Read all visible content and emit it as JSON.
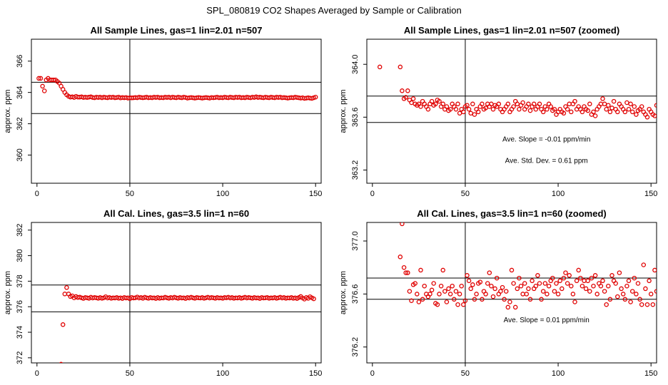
{
  "title": "SPL_080819  CO2 Shapes Averaged by Sample or Calibration",
  "colors": {
    "points": "#e00000",
    "lines": "#000000"
  },
  "chart_data": [
    {
      "type": "scatter",
      "title": "All Sample Lines, gas=1 lin=2.01 n=507",
      "xlabel": "",
      "ylabel": "approx. ppm",
      "xlim": [
        -3,
        153
      ],
      "ylim": [
        358.2,
        367.4
      ],
      "xticks": [
        0,
        50,
        100,
        150
      ],
      "yticks": [
        360,
        362,
        364,
        366
      ],
      "vline_x": 50,
      "hlines_y": [
        364.65,
        362.65
      ],
      "annotations": [],
      "series": [
        {
          "x_start": 1,
          "x_step": 1,
          "y": [
            364.9,
            364.9,
            364.4,
            364.1,
            364.8,
            364.9,
            364.8,
            364.8,
            364.8,
            364.8,
            364.7,
            364.6,
            364.4,
            364.2,
            364.0,
            363.85,
            363.75,
            363.7,
            363.72,
            363.68,
            363.75,
            363.7,
            363.7,
            363.72,
            363.68,
            363.7,
            363.68,
            363.7,
            363.72,
            363.68,
            363.66,
            363.7,
            363.68,
            363.7,
            363.66,
            363.7,
            363.68,
            363.66,
            363.7,
            363.68,
            363.7,
            363.66,
            363.68,
            363.7,
            363.65,
            363.68,
            363.66,
            363.68,
            363.64,
            363.66,
            363.65,
            363.66,
            363.68,
            363.66,
            363.7,
            363.68,
            363.66,
            363.68,
            363.7,
            363.66,
            363.68,
            363.66,
            363.7,
            363.68,
            363.7,
            363.66,
            363.68,
            363.66,
            363.7,
            363.68,
            363.7,
            363.66,
            363.7,
            363.68,
            363.66,
            363.7,
            363.68,
            363.66,
            363.7,
            363.68,
            363.64,
            363.66,
            363.68,
            363.66,
            363.64,
            363.66,
            363.68,
            363.66,
            363.64,
            363.66,
            363.68,
            363.66,
            363.64,
            363.68,
            363.66,
            363.68,
            363.7,
            363.66,
            363.68,
            363.66,
            363.7,
            363.68,
            363.66,
            363.7,
            363.68,
            363.66,
            363.7,
            363.68,
            363.7,
            363.66,
            363.68,
            363.66,
            363.7,
            363.68,
            363.66,
            363.7,
            363.68,
            363.72,
            363.68,
            363.7,
            363.68,
            363.66,
            363.7,
            363.68,
            363.66,
            363.7,
            363.68,
            363.66,
            363.7,
            363.68,
            363.7,
            363.66,
            363.68,
            363.66,
            363.64,
            363.66,
            363.68,
            363.66,
            363.7,
            363.68,
            363.66,
            363.64,
            363.66,
            363.62,
            363.64,
            363.66,
            363.64,
            363.62,
            363.66,
            363.7
          ]
        }
      ]
    },
    {
      "type": "scatter",
      "title": "All Sample Lines, gas=1 lin=2.01 n=507 (zoomed)",
      "xlabel": "",
      "ylabel": "approx. ppm",
      "xlim": [
        -3,
        153
      ],
      "ylim": [
        363.1,
        364.19
      ],
      "xticks": [
        0,
        50,
        100,
        150
      ],
      "yticks": [
        363.2,
        363.6,
        364.0
      ],
      "yticklabels": [
        "363.2",
        "363.6",
        "364.0"
      ],
      "vline_x": 50,
      "hlines_y": [
        363.76,
        363.56
      ],
      "annotations": [
        "Ave. Slope =  -0.01  ppm/min",
        "Ave. Std. Dev. =  0.61  ppm"
      ],
      "series": [
        {
          "x_start": 4,
          "x_step": 1,
          "y": [
            363.98,
            null,
            null,
            null,
            null,
            null,
            null,
            null,
            null,
            null,
            null,
            363.98,
            363.8,
            363.74,
            363.75,
            363.8,
            363.73,
            363.71,
            363.74,
            363.7,
            363.69,
            363.7,
            363.68,
            363.72,
            363.7,
            363.68,
            363.66,
            363.7,
            363.72,
            363.69,
            363.7,
            363.73,
            363.72,
            363.68,
            363.7,
            363.66,
            363.68,
            363.65,
            363.66,
            363.7,
            363.68,
            363.66,
            363.7,
            363.63,
            363.66,
            363.64,
            363.68,
            363.69,
            363.66,
            363.63,
            363.7,
            363.62,
            363.66,
            363.64,
            363.68,
            363.7,
            363.66,
            363.67,
            363.7,
            363.68,
            363.7,
            363.66,
            363.69,
            363.68,
            363.7,
            363.66,
            363.64,
            363.66,
            363.68,
            363.7,
            363.64,
            363.66,
            363.68,
            363.72,
            363.7,
            363.66,
            363.69,
            363.71,
            363.66,
            363.68,
            363.7,
            363.65,
            363.68,
            363.7,
            363.66,
            363.68,
            363.7,
            363.66,
            363.64,
            363.68,
            363.66,
            363.7,
            363.68,
            363.65,
            363.66,
            363.62,
            363.64,
            363.66,
            363.64,
            363.63,
            363.68,
            363.66,
            363.7,
            363.64,
            363.7,
            363.72,
            363.66,
            363.68,
            363.66,
            363.64,
            363.68,
            363.66,
            363.65,
            363.7,
            363.62,
            363.64,
            363.61,
            363.66,
            363.68,
            363.7,
            363.74,
            363.7,
            363.66,
            363.69,
            363.64,
            363.67,
            363.72,
            363.66,
            363.64,
            363.7,
            363.68,
            363.66,
            363.64,
            363.71,
            363.66,
            363.7,
            363.64,
            363.68,
            363.62,
            363.65,
            363.66,
            363.68,
            363.64,
            363.62,
            363.6,
            363.66,
            363.64,
            363.62,
            363.61,
            363.69
          ]
        }
      ]
    },
    {
      "type": "scatter",
      "title": "All Cal. Lines, gas=3.5 lin=1 n=60",
      "xlabel": "",
      "ylabel": "approx. ppm",
      "xlim": [
        -3,
        153
      ],
      "ylim": [
        371.6,
        382.6
      ],
      "xticks": [
        0,
        50,
        100,
        150
      ],
      "yticks": [
        372,
        374,
        376,
        378,
        380,
        382
      ],
      "yticklabels": [
        "372",
        "374",
        "376",
        "378",
        "380",
        "382"
      ],
      "vline_x": 50,
      "hlines_y": [
        377.7,
        375.6
      ],
      "annotations": [],
      "series": [
        {
          "x_start": 13,
          "x_step": 1,
          "y": [
            371.5,
            374.6,
            377.0,
            377.5,
            377.0,
            376.8,
            376.85,
            376.7,
            376.8,
            376.72,
            376.75,
            376.7,
            376.65,
            376.72,
            376.7,
            376.66,
            376.74,
            376.68,
            376.72,
            376.7,
            376.66,
            376.72,
            376.66,
            376.7,
            376.78,
            376.68,
            376.72,
            376.66,
            376.7,
            376.68,
            376.72,
            376.66,
            376.7,
            376.64,
            376.72,
            376.68,
            376.7,
            376.62,
            376.72,
            376.68,
            376.7,
            376.76,
            376.68,
            376.72,
            376.66,
            376.74,
            376.7,
            376.66,
            376.72,
            376.68,
            376.7,
            376.64,
            376.72,
            376.66,
            376.7,
            376.68,
            376.74,
            376.7,
            376.66,
            376.72,
            376.68,
            376.74,
            376.7,
            376.66,
            376.72,
            376.68,
            376.7,
            376.64,
            376.72,
            376.68,
            376.74,
            376.7,
            376.66,
            376.72,
            376.7,
            376.68,
            376.72,
            376.66,
            376.7,
            376.74,
            376.68,
            376.72,
            376.7,
            376.66,
            376.72,
            376.68,
            376.7,
            376.66,
            376.72,
            376.7,
            376.74,
            376.68,
            376.72,
            376.66,
            376.7,
            376.68,
            376.72,
            376.66,
            376.7,
            376.74,
            376.68,
            376.72,
            376.7,
            376.66,
            376.72,
            376.68,
            376.7,
            376.64,
            376.72,
            376.68,
            376.7,
            376.72,
            376.66,
            376.7,
            376.68,
            376.72,
            376.66,
            376.7,
            376.74,
            376.68,
            376.72,
            376.66,
            376.7,
            376.68,
            376.72,
            376.66,
            376.7,
            376.64,
            376.72,
            376.8,
            376.68,
            376.6,
            376.72,
            376.66,
            376.78,
            376.7,
            376.62
          ]
        }
      ]
    },
    {
      "type": "scatter",
      "title": "All Cal. Lines, gas=3.5 lin=1 n=60 (zoomed)",
      "xlabel": "",
      "ylabel": "approx. ppm",
      "xlim": [
        -3,
        153
      ],
      "ylim": [
        376.08,
        377.14
      ],
      "xticks": [
        0,
        50,
        100,
        150
      ],
      "yticks": [
        376.2,
        376.6,
        377.0
      ],
      "yticklabels": [
        "376.2",
        "376.6",
        "377.0"
      ],
      "vline_x": 50,
      "hlines_y": [
        376.72,
        376.56
      ],
      "annotations": [
        "Ave. Slope =  0.01  ppm/min"
      ],
      "series": [
        {
          "x_start": 15,
          "x_step": 1,
          "y": [
            376.88,
            377.13,
            376.8,
            376.76,
            376.76,
            376.62,
            376.55,
            376.67,
            376.68,
            376.6,
            376.54,
            376.78,
            376.56,
            376.66,
            376.6,
            376.58,
            376.6,
            376.63,
            376.68,
            376.53,
            376.52,
            376.6,
            376.66,
            376.78,
            376.62,
            376.54,
            376.64,
            376.6,
            376.66,
            376.56,
            376.62,
            376.52,
            376.6,
            376.66,
            376.52,
            376.55,
            376.74,
            376.7,
            376.64,
            376.67,
            376.56,
            376.6,
            376.68,
            376.69,
            376.56,
            376.62,
            376.6,
            376.68,
            376.76,
            376.66,
            376.58,
            376.64,
            376.72,
            376.6,
            376.62,
            376.65,
            376.56,
            376.62,
            376.5,
            376.54,
            376.78,
            376.68,
            376.5,
            376.64,
            376.72,
            376.66,
            376.6,
            376.68,
            376.6,
            376.64,
            376.56,
            376.7,
            376.64,
            376.66,
            376.74,
            376.68,
            376.56,
            376.62,
            376.68,
            376.6,
            376.66,
            376.7,
            376.72,
            376.62,
            376.68,
            376.6,
            376.7,
            376.64,
            376.72,
            376.76,
            376.68,
            376.74,
            376.66,
            376.6,
            376.54,
            376.7,
            376.78,
            376.72,
            376.66,
            376.7,
            376.64,
            376.7,
            376.62,
            376.72,
            376.66,
            376.74,
            376.6,
            376.68,
            376.66,
            376.7,
            376.62,
            376.52,
            376.66,
            376.56,
            376.74,
            376.7,
            376.68,
            376.58,
            376.76,
            376.64,
            376.6,
            376.56,
            376.66,
            376.7,
            376.54,
            376.62,
            376.72,
            376.6,
            376.68,
            376.56,
            376.52,
            376.82,
            376.64,
            376.52,
            376.7,
            376.6,
            376.52,
            376.78,
            376.62,
            376.55
          ]
        }
      ]
    }
  ]
}
